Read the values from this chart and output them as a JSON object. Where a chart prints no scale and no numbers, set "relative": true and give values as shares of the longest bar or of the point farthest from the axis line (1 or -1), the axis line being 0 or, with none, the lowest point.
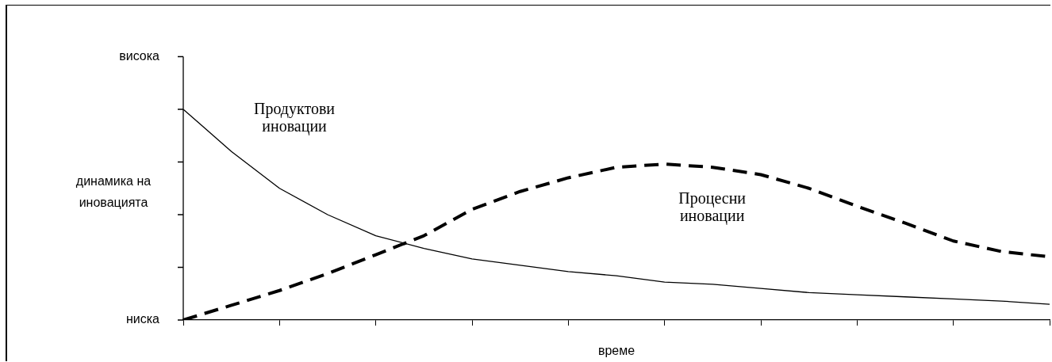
{
  "chart_data": {
    "type": "line",
    "relative": true,
    "xlabel": "време",
    "ylabel": "динамика на иновацията",
    "annotations": [
      "висока",
      "ниска"
    ],
    "categories": [
      null,
      null,
      null,
      null,
      null,
      null,
      null,
      null,
      null,
      null,
      null,
      null,
      null,
      null,
      null,
      null,
      null,
      null,
      null
    ],
    "series": [
      {
        "name": "Продуктови иновации",
        "color": "#000000",
        "line_style": "solid",
        "values": [
          1,
          0.8,
          0.625,
          0.5,
          0.4,
          0.34,
          0.29,
          0.26,
          0.23,
          0.21,
          0.18,
          0.17,
          0.15,
          0.13,
          0.12,
          0.11,
          0.1,
          0.09,
          0.075
        ]
      },
      {
        "name": "Процесни иновации",
        "color": "#000000",
        "line_style": "dashed",
        "values": [
          0,
          0.07,
          0.14,
          0.22,
          0.31,
          0.4,
          0.525,
          0.61,
          0.675,
          0.725,
          0.74,
          0.725,
          0.69,
          0.625,
          0.54,
          0.46,
          0.375,
          0.325,
          0.3
        ]
      }
    ]
  }
}
